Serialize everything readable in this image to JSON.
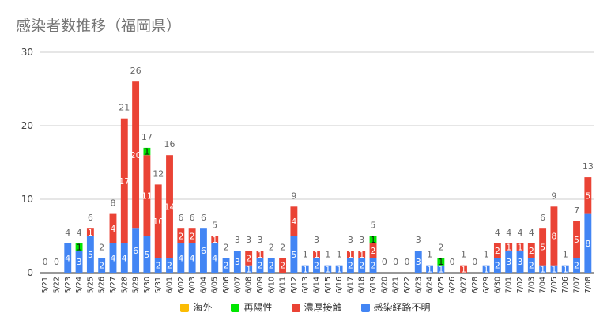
{
  "title": "感染者数推移（福岡県）",
  "chart_data": {
    "type": "bar",
    "stacked": true,
    "title": "感染者数推移（福岡県）",
    "xlabel": "",
    "ylabel": "",
    "ylim": [
      0,
      30
    ],
    "yticks": [
      0,
      10,
      20,
      30
    ],
    "grid": true,
    "legend_position": "bottom",
    "categories": [
      "5/21",
      "5/22",
      "5/23",
      "5/24",
      "5/25",
      "5/26",
      "5/27",
      "5/28",
      "5/29",
      "5/30",
      "5/31",
      "6/01",
      "6/02",
      "6/03",
      "6/04",
      "6/05",
      "6/06",
      "6/07",
      "6/08",
      "6/09",
      "6/10",
      "6/11",
      "6/12",
      "6/13",
      "6/14",
      "6/15",
      "6/16",
      "6/17",
      "6/18",
      "6/19",
      "6/20",
      "6/21",
      "6/22",
      "6/23",
      "6/24",
      "6/25",
      "6/26",
      "6/27",
      "6/28",
      "6/29",
      "6/30",
      "7/01",
      "7/02",
      "7/03",
      "7/04",
      "7/05",
      "7/06",
      "7/07",
      "7/08"
    ],
    "series": [
      {
        "name": "海外",
        "color": "#fbbc04",
        "values": [
          0,
          0,
          0,
          0,
          0,
          0,
          0,
          0,
          0,
          0,
          0,
          0,
          0,
          0,
          0,
          0,
          0,
          0,
          0,
          0,
          0,
          0,
          0,
          0,
          0,
          0,
          0,
          0,
          0,
          0,
          0,
          0,
          0,
          0,
          0,
          0,
          0,
          0,
          0,
          0,
          0,
          0,
          0,
          0,
          0,
          0,
          0,
          0,
          0
        ]
      },
      {
        "name": "再陽性",
        "color": "#00e600",
        "values": [
          0,
          0,
          0,
          1,
          0,
          0,
          0,
          0,
          0,
          1,
          0,
          0,
          0,
          0,
          0,
          0,
          0,
          0,
          0,
          0,
          0,
          0,
          0,
          0,
          0,
          0,
          0,
          0,
          0,
          1,
          0,
          0,
          0,
          0,
          0,
          1,
          0,
          0,
          0,
          0,
          0,
          0,
          0,
          0,
          0,
          0,
          0,
          0,
          0
        ]
      },
      {
        "name": "濃厚接触",
        "color": "#ea4335",
        "values": [
          0,
          0,
          0,
          0,
          1,
          0,
          4,
          17,
          20,
          11,
          10,
          14,
          2,
          2,
          0,
          1,
          0,
          0,
          2,
          1,
          0,
          2,
          4,
          0,
          1,
          0,
          0,
          1,
          1,
          2,
          0,
          0,
          0,
          0,
          0,
          0,
          0,
          1,
          0,
          0,
          2,
          1,
          1,
          2,
          5,
          8,
          0,
          5,
          5
        ]
      },
      {
        "name": "感染経路不明",
        "color": "#4285f4",
        "values": [
          0,
          0,
          4,
          3,
          5,
          2,
          4,
          4,
          6,
          5,
          2,
          2,
          4,
          4,
          6,
          4,
          2,
          3,
          1,
          2,
          2,
          0,
          5,
          1,
          2,
          1,
          1,
          2,
          2,
          2,
          0,
          0,
          0,
          3,
          1,
          1,
          0,
          0,
          0,
          1,
          2,
          3,
          3,
          2,
          1,
          1,
          1,
          2,
          8
        ]
      }
    ],
    "totals": [
      0,
      0,
      4,
      4,
      6,
      2,
      8,
      21,
      26,
      17,
      12,
      16,
      6,
      6,
      6,
      5,
      2,
      3,
      3,
      3,
      2,
      2,
      9,
      1,
      3,
      1,
      1,
      3,
      3,
      5,
      0,
      0,
      0,
      3,
      1,
      2,
      0,
      1,
      0,
      1,
      4,
      4,
      4,
      4,
      6,
      9,
      1,
      7,
      13
    ]
  }
}
